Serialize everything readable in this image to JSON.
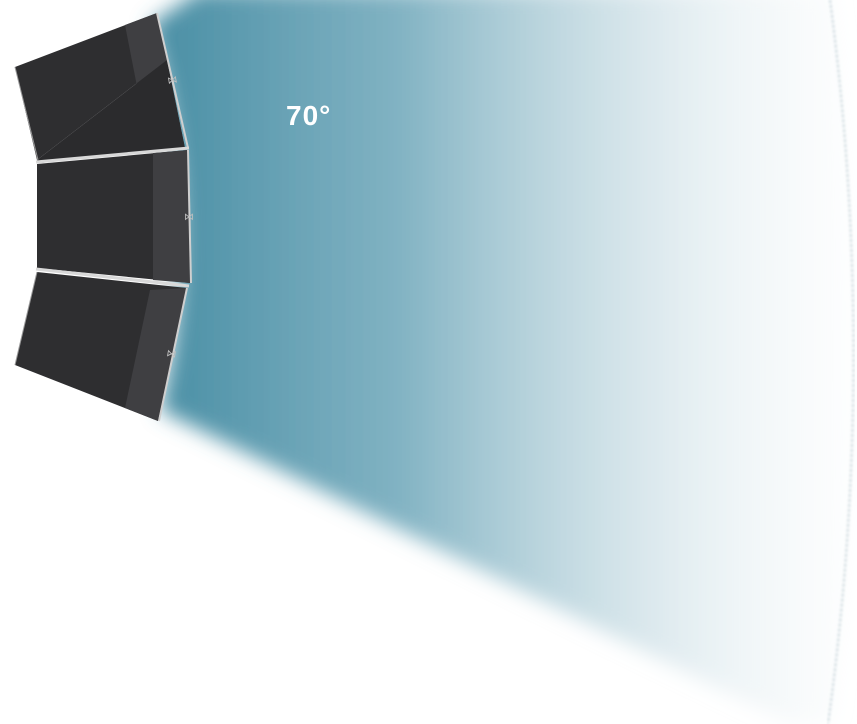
{
  "coverage": {
    "angle_label": "70°",
    "angle_degrees": 70,
    "beam_color": "#4a8fa5",
    "cabinet_count": 3
  },
  "colors": {
    "cabinet_body": "#2e2e30",
    "cabinet_side": "#3f3f42",
    "cabinet_edge": "#cfcfcf",
    "background": "#ffffff"
  },
  "icons": [
    "logo-mark-icon",
    "logo-mark-icon",
    "logo-mark-icon"
  ]
}
